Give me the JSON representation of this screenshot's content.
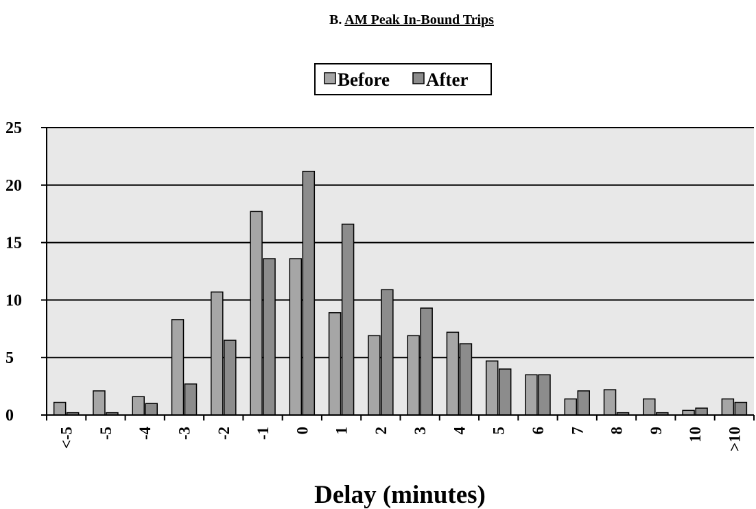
{
  "page": {
    "section": "B.",
    "title": "AM Peak In-Bound Trips"
  },
  "colors": {
    "before": "#a6a6a6",
    "after": "#8c8c8c",
    "plot_background": "#e8e8e8"
  },
  "chart_data": {
    "type": "bar",
    "title": "",
    "xlabel": "Delay (minutes)",
    "ylabel": "",
    "ylim": [
      0,
      25
    ],
    "yticks": [
      0,
      5,
      10,
      15,
      20,
      25
    ],
    "grid": true,
    "legend_position": "top-center",
    "categories": [
      "<-5",
      "-5",
      "-4",
      "-3",
      "-2",
      "-1",
      "0",
      "1",
      "2",
      "3",
      "4",
      "5",
      "6",
      "7",
      "8",
      "9",
      "10",
      ">10"
    ],
    "series": [
      {
        "name": "Before",
        "values": [
          1.1,
          2.1,
          1.6,
          8.3,
          10.7,
          17.7,
          13.6,
          8.9,
          6.9,
          6.9,
          7.2,
          4.7,
          3.5,
          1.4,
          2.2,
          1.4,
          0.4,
          1.4
        ]
      },
      {
        "name": "After",
        "values": [
          0.2,
          0.2,
          1.0,
          2.7,
          6.5,
          13.6,
          21.2,
          16.6,
          10.9,
          9.3,
          6.2,
          4.0,
          3.5,
          2.1,
          0.2,
          0.2,
          0.6,
          1.1
        ]
      }
    ]
  }
}
